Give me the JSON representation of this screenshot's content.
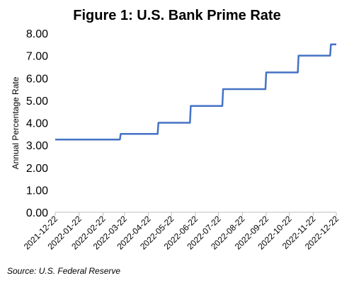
{
  "chart_data": {
    "type": "line",
    "title": "Figure 1: U.S. Bank Prime Rate",
    "y_label": "Annual Percentage Rate",
    "source": "Source: U.S. Federal Reserve",
    "x": [
      "2021-12-22",
      "2022-03-16",
      "2022-03-17",
      "2022-05-04",
      "2022-05-05",
      "2022-06-15",
      "2022-06-16",
      "2022-07-27",
      "2022-07-28",
      "2022-09-21",
      "2022-09-22",
      "2022-11-02",
      "2022-11-03",
      "2022-12-14",
      "2022-12-15",
      "2022-12-22"
    ],
    "series": [
      {
        "name": "Prime Rate",
        "color": "#4472c4",
        "values": [
          3.25,
          3.25,
          3.5,
          3.5,
          4.0,
          4.0,
          4.75,
          4.75,
          5.5,
          5.5,
          6.25,
          6.25,
          7.0,
          7.0,
          7.5,
          7.5
        ]
      }
    ],
    "xlim": [
      "2021-12-22",
      "2022-12-22"
    ],
    "xticks": [
      "2021-12-22",
      "2022-01-22",
      "2022-02-22",
      "2022-03-22",
      "2022-04-22",
      "2022-05-22",
      "2022-06-22",
      "2022-07-22",
      "2022-08-22",
      "2022-09-22",
      "2022-10-22",
      "2022-11-22",
      "2022-12-22"
    ],
    "ylim": [
      0,
      8
    ],
    "yticks": [
      {
        "value": 0,
        "label": "0.00"
      },
      {
        "value": 1,
        "label": "1.00"
      },
      {
        "value": 2,
        "label": "2.00"
      },
      {
        "value": 3,
        "label": "3.00"
      },
      {
        "value": 4,
        "label": "4.00"
      },
      {
        "value": 5,
        "label": "5.00"
      },
      {
        "value": 6,
        "label": "6.00"
      },
      {
        "value": 7,
        "label": "7.00"
      },
      {
        "value": 8,
        "label": "8.00"
      }
    ],
    "grid": false
  }
}
